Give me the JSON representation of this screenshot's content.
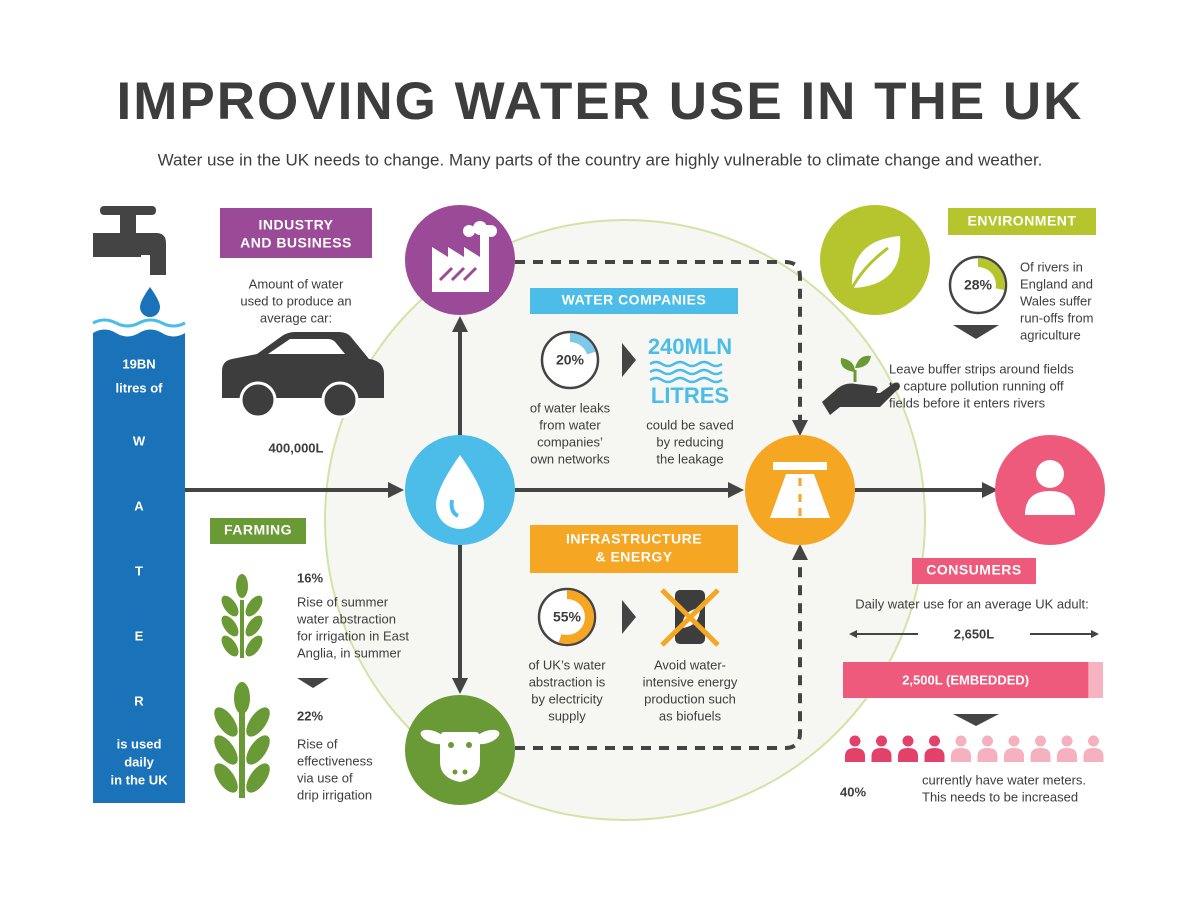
{
  "header": {
    "title": "IMPROVING WATER USE IN THE UK",
    "subtitle": "Water use in the UK needs to change. Many parts of the country are highly vulnerable to climate change and weather."
  },
  "water": {
    "amount": "19BN",
    "unit": "litres of",
    "letters": [
      "W",
      "A",
      "T",
      "E",
      "R"
    ],
    "footer": [
      "is used",
      "daily",
      "in the UK"
    ]
  },
  "industry": {
    "label": [
      "INDUSTRY",
      "AND BUSINESS"
    ],
    "text": [
      "Amount of water",
      "used to produce an",
      "average car:"
    ],
    "value": "400,000L"
  },
  "farming": {
    "label": "FARMING",
    "stats": [
      {
        "value": "16%",
        "text": [
          "Rise of summer",
          "water abstraction",
          "for irrigation in East",
          "Anglia, in summer"
        ]
      },
      {
        "value": "22%",
        "text": [
          "Rise of",
          "effectiveness",
          "via use of",
          "drip irrigation"
        ]
      }
    ]
  },
  "water_companies": {
    "label": "WATER COMPANIES",
    "leak_share": {
      "value": 20,
      "label": "20%"
    },
    "leak_text": [
      "of water leaks",
      "from water",
      "companies’",
      "own networks"
    ],
    "saving": "240MLN",
    "saving_unit": "LITRES",
    "saving_text": [
      "could be saved",
      "by reducing",
      "the leakage"
    ]
  },
  "infrastructure": {
    "label": [
      "INFRASTRUCTURE",
      "& ENERGY"
    ],
    "electricity_share": {
      "value": 55,
      "label": "55%"
    },
    "share_text": [
      "of UK’s water",
      "abstraction is",
      "by electricity",
      "supply"
    ],
    "advice": [
      "Avoid water-",
      "intensive energy",
      "production such",
      "as biofuels"
    ]
  },
  "environment": {
    "label": "ENVIRONMENT",
    "runoff_share": {
      "value": 28,
      "label": "28%"
    },
    "runoff_text": [
      "Of rivers in",
      "England and",
      "Wales suffer",
      "run-offs from",
      "agriculture"
    ],
    "advice": [
      "Leave buffer strips around fields",
      "to capture pollution running off",
      "fields before it enters rivers"
    ]
  },
  "consumers": {
    "label": "CONSUMERS",
    "intro": "Daily water use for an average UK adult:",
    "total": {
      "value": 2650,
      "label": "2,650L"
    },
    "embedded": {
      "value": 2500,
      "label": "2,500L (EMBEDDED)"
    },
    "meters": {
      "value": 40,
      "label": "40%"
    },
    "meters_text": [
      "currently have water meters.",
      "This needs to be increased"
    ]
  }
}
